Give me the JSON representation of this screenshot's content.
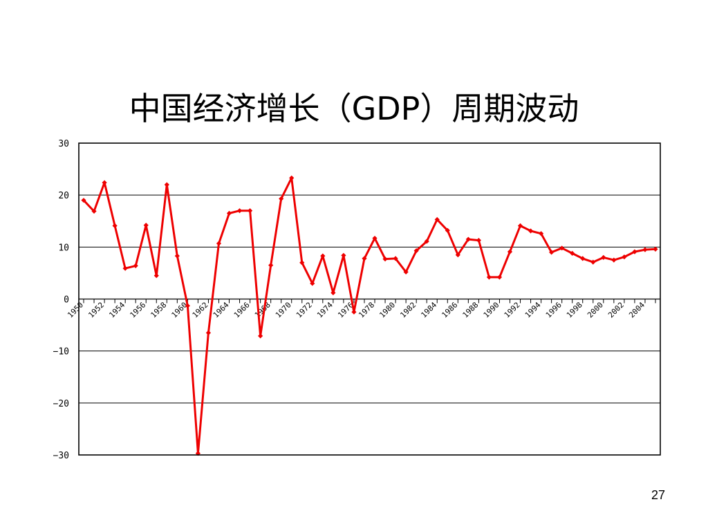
{
  "slide": {
    "title": "中国经济增长（GDP）周期波动",
    "page_number": "27"
  },
  "chart_data": {
    "type": "line",
    "title": "",
    "xlabel": "",
    "ylabel": "",
    "ylim": [
      -30,
      30
    ],
    "y_ticks": [
      30,
      20,
      10,
      0,
      -10,
      -20,
      -30
    ],
    "y_tick_labels": [
      "30",
      "20",
      "10",
      "0",
      "−10",
      "−20",
      "−30"
    ],
    "x_tick_labels": [
      "1950",
      "1952",
      "1954",
      "1956",
      "1958",
      "1960",
      "1962",
      "1964",
      "1966",
      "1968",
      "1970",
      "1972",
      "1974",
      "1976",
      "1978",
      "1980",
      "1982",
      "1984",
      "1986",
      "1988",
      "1990",
      "1992",
      "1994",
      "1996",
      "1998",
      "2000",
      "2002",
      "2004"
    ],
    "grid": true,
    "legend": "none",
    "color": "#ee0000",
    "series": [
      {
        "x": [
          1950,
          1951,
          1952,
          1953,
          1954,
          1955,
          1956,
          1957,
          1958,
          1959,
          1960,
          1961,
          1962,
          1963,
          1964,
          1965,
          1966,
          1967,
          1968,
          1969,
          1970,
          1971,
          1972,
          1973,
          1974,
          1975,
          1976,
          1977,
          1978,
          1979,
          1980,
          1981,
          1982,
          1983,
          1984,
          1985,
          1986,
          1987,
          1988,
          1989,
          1990,
          1991,
          1992,
          1993,
          1994,
          1995,
          1996,
          1997,
          1998,
          1999,
          2000,
          2001,
          2002,
          2003,
          2004,
          2005
        ],
        "values": [
          19,
          16.9,
          22.4,
          14.1,
          5.9,
          6.4,
          14.2,
          4.5,
          22,
          8.3,
          -1.3,
          -29.7,
          -6.5,
          10.7,
          16.5,
          17,
          17,
          -7.1,
          6.5,
          19.3,
          23.3,
          7,
          3,
          8.3,
          1.2,
          8.4,
          -2.5,
          7.8,
          11.7,
          7.7,
          7.8,
          5.2,
          9.3,
          11.1,
          15.3,
          13.2,
          8.5,
          11.5,
          11.3,
          4.2,
          4.2,
          9.1,
          14.1,
          13.1,
          12.6,
          9,
          9.8,
          8.8,
          7.8,
          7.1,
          8,
          7.5,
          8.1,
          9.1,
          9.5,
          9.6
        ]
      }
    ]
  }
}
